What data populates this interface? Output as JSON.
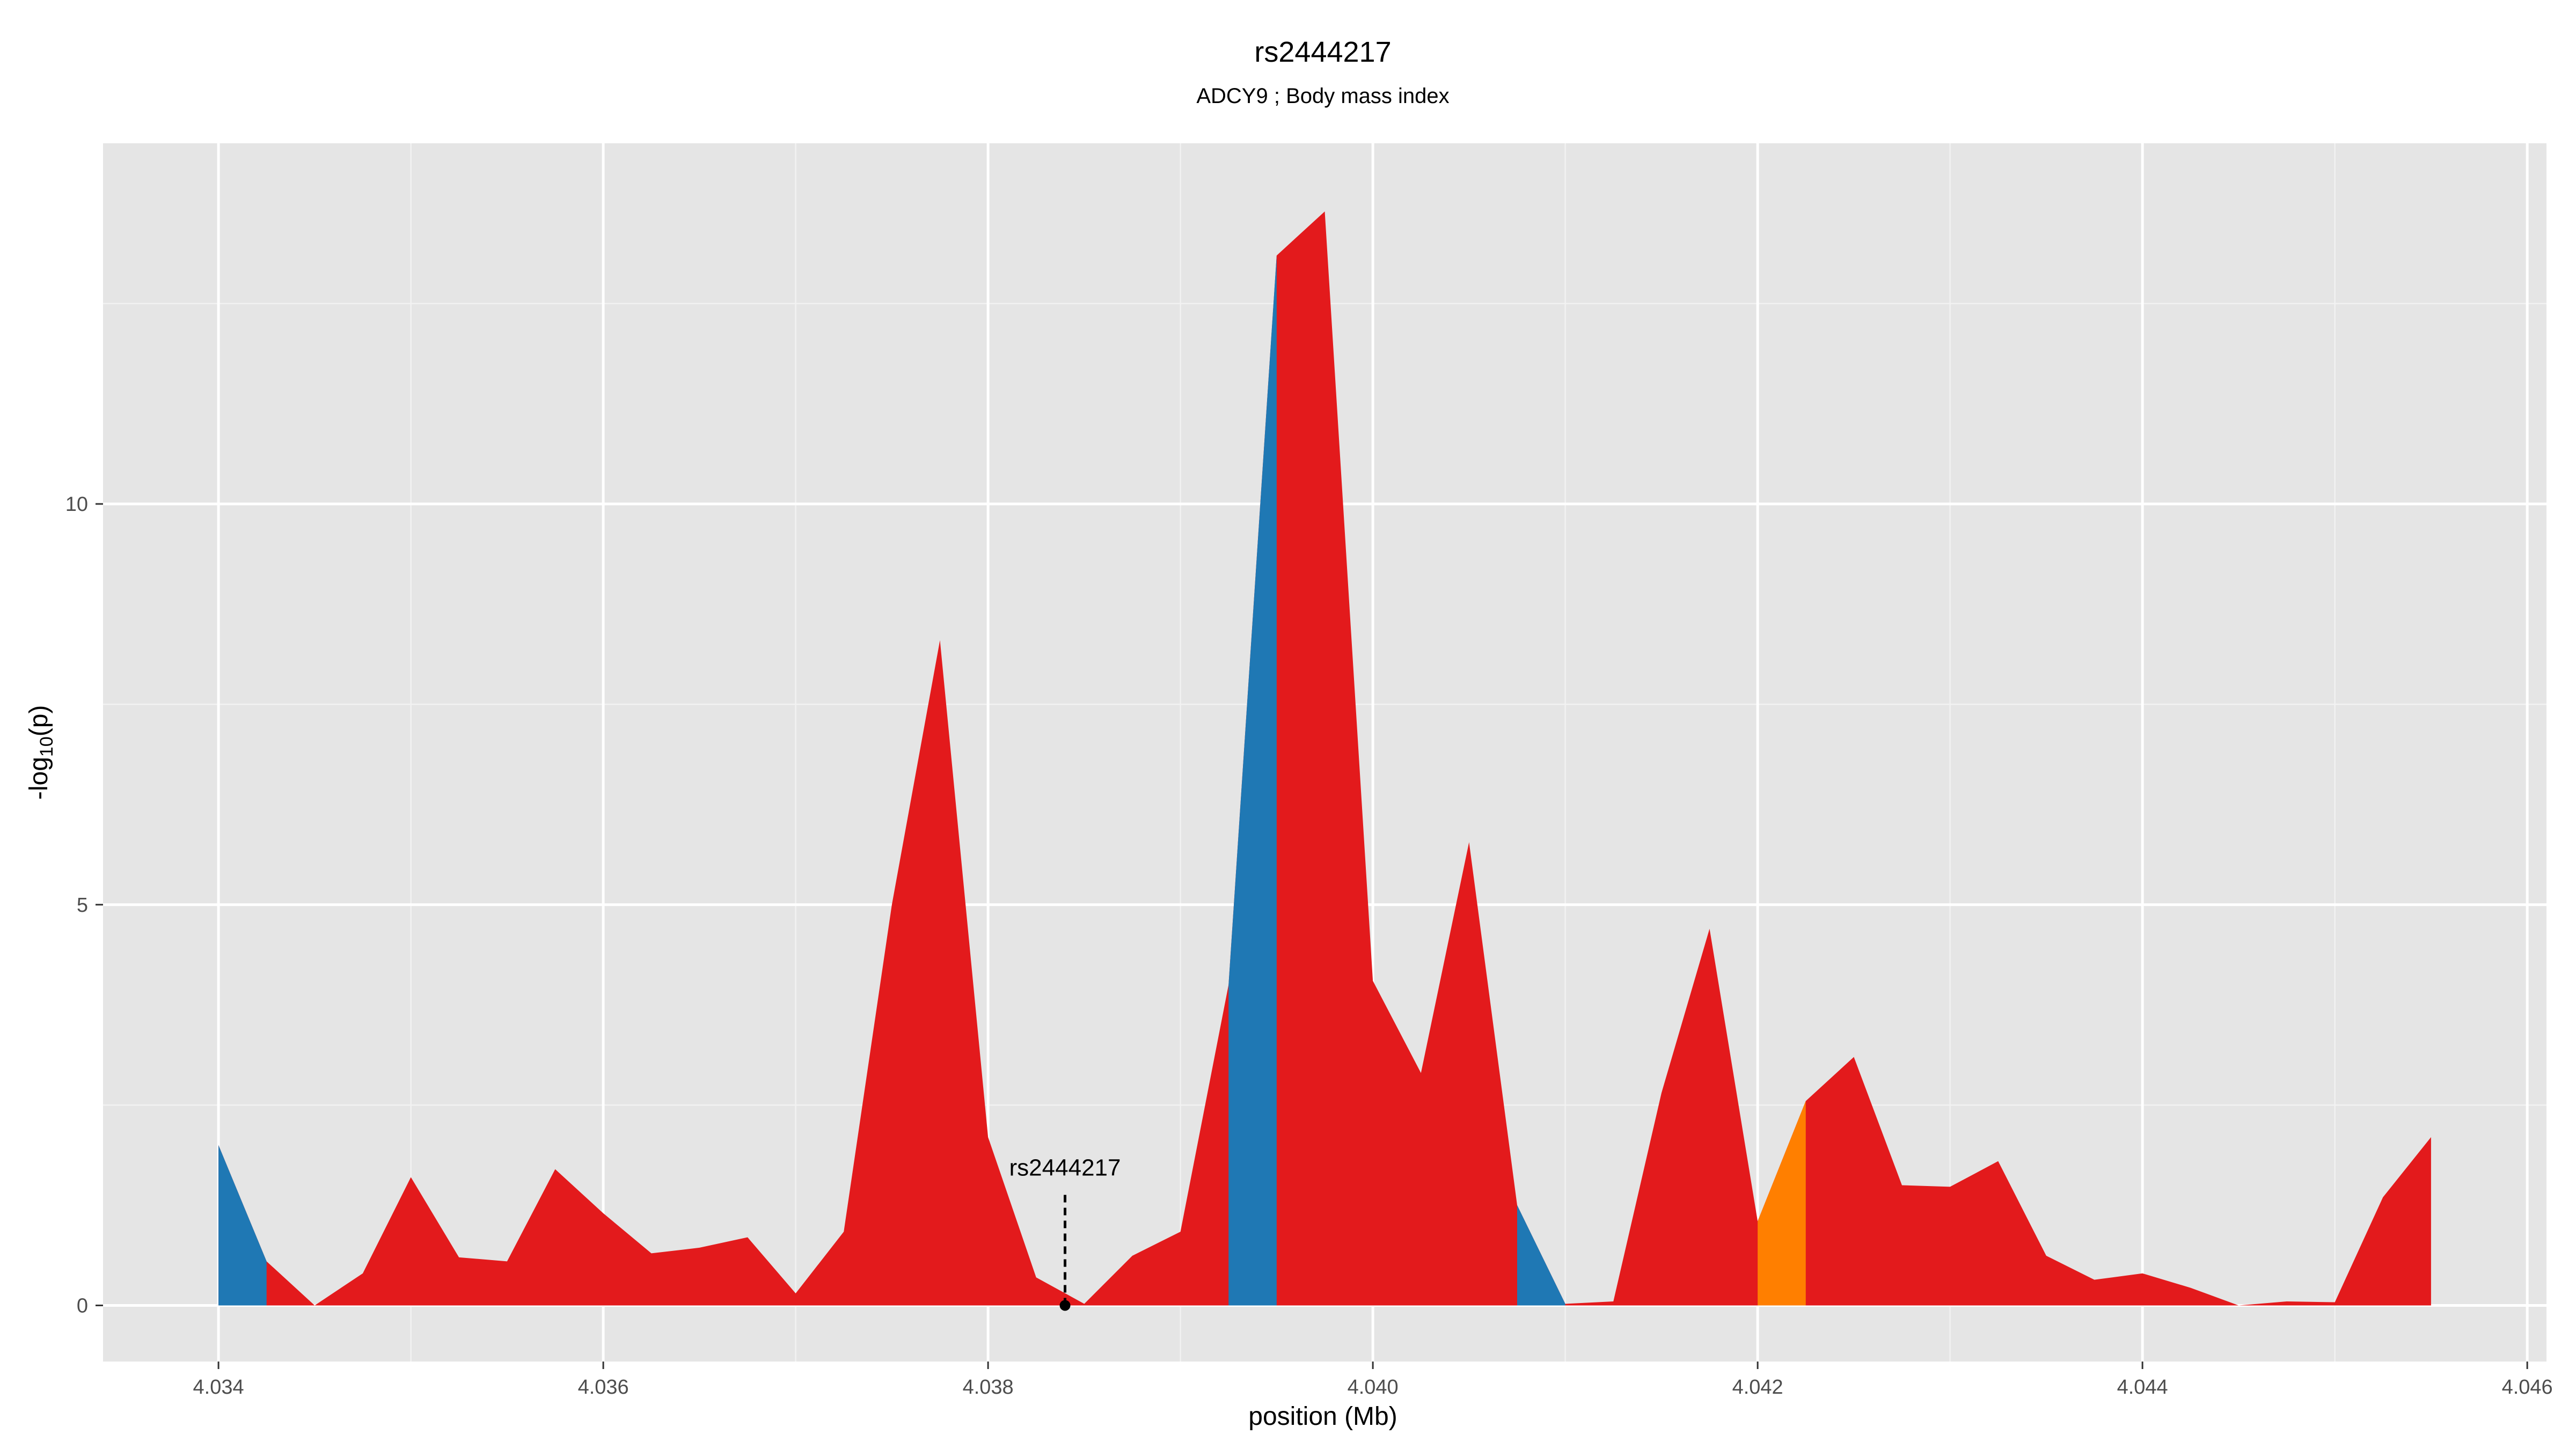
{
  "chart_data": {
    "type": "area",
    "title": "rs2444217",
    "subtitle": "ADCY9 ; Body mass index",
    "xlabel": "position (Mb)",
    "ylabel_base": "-log",
    "ylabel_sub": "10",
    "ylabel_tail": "(p)",
    "xlim": [
      4.0334,
      4.0461
    ],
    "ylim": [
      -0.7,
      14.5
    ],
    "xticks": [
      4.034,
      4.036,
      4.038,
      4.04,
      4.042,
      4.044,
      4.046
    ],
    "xtick_labels": [
      "4.034",
      "4.036",
      "4.038",
      "4.040",
      "4.042",
      "4.044",
      "4.046"
    ],
    "xminor": [
      4.035,
      4.037,
      4.039,
      4.041,
      4.043,
      4.045
    ],
    "yticks": [
      0,
      5,
      10
    ],
    "ytick_labels": [
      "0",
      "5",
      "10"
    ],
    "yminor": [
      2.5,
      7.5,
      12.5
    ],
    "grid": true,
    "series": [
      {
        "color": "#e31a1c",
        "x": [
          4.034,
          4.03425,
          4.0345,
          4.03475,
          4.035,
          4.03525,
          4.0355,
          4.03575,
          4.036,
          4.03625,
          4.0365,
          4.03675,
          4.037,
          4.03725,
          4.0375,
          4.03775,
          4.038,
          4.03825,
          4.0385,
          4.03875,
          4.039,
          4.03925,
          4.0395,
          4.03975,
          4.04,
          4.04025,
          4.0405,
          4.04075,
          4.041,
          4.04125,
          4.0415,
          4.04175,
          4.042,
          4.04225,
          4.0425,
          4.04275,
          4.043,
          4.04325,
          4.0435,
          4.04375,
          4.044,
          4.04425,
          4.0445,
          4.04475,
          4.045,
          4.04525,
          4.0455
        ],
        "y": [
          2.0,
          0.55,
          0.0,
          0.4,
          1.6,
          0.6,
          0.55,
          1.7,
          1.15,
          0.65,
          0.72,
          0.85,
          0.15,
          0.92,
          5.0,
          8.3,
          2.1,
          0.35,
          0.02,
          0.62,
          0.92,
          4.0,
          13.1,
          13.65,
          4.05,
          2.9,
          5.78,
          1.25,
          0.02,
          0.05,
          2.65,
          4.7,
          1.05,
          2.55,
          3.1,
          1.5,
          1.48,
          1.8,
          0.62,
          0.32,
          0.4,
          0.22,
          0.0,
          0.05,
          0.04,
          1.35,
          2.1
        ]
      },
      {
        "color": "#1f78b4",
        "ranges": [
          [
            4.034,
            4.03425
          ],
          [
            4.03925,
            4.0395
          ],
          [
            4.04075,
            4.041
          ]
        ]
      },
      {
        "color": "#ff7f00",
        "ranges": [
          [
            4.042,
            4.04225
          ]
        ]
      }
    ],
    "annotation": {
      "label": "rs2444217",
      "x": 4.0384,
      "y": 0.0
    }
  }
}
